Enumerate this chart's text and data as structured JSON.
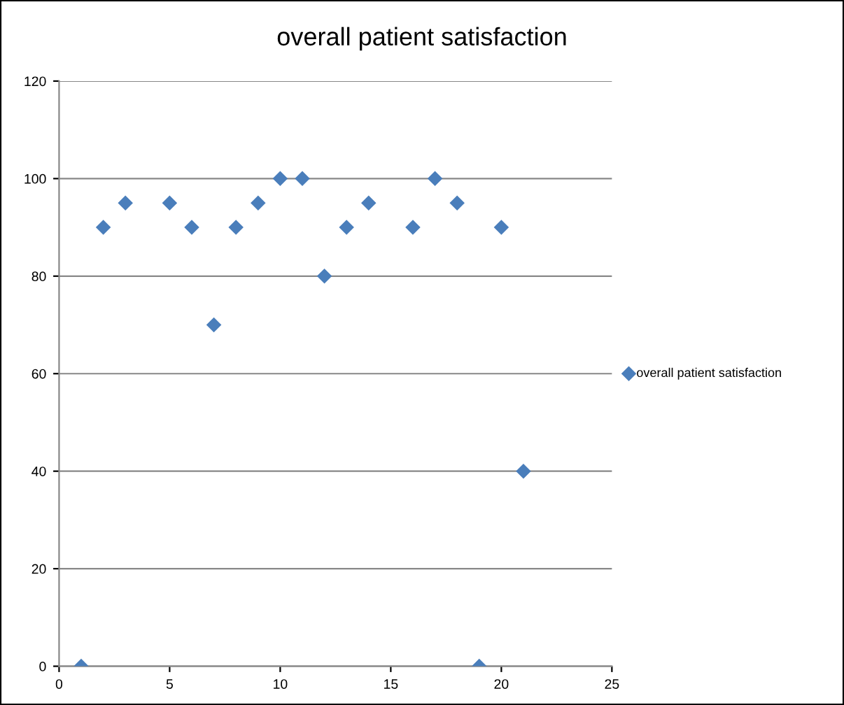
{
  "chart_data": {
    "type": "scatter",
    "title": "overall patient satisfaction",
    "x": [
      1,
      2,
      3,
      5,
      6,
      7,
      8,
      9,
      10,
      11,
      12,
      13,
      14,
      16,
      17,
      18,
      19,
      20,
      21
    ],
    "series": [
      {
        "name": "overall patient satisfaction",
        "color": "#4a7ebb",
        "values": [
          0,
          90,
          95,
          95,
          90,
          70,
          90,
          95,
          100,
          100,
          80,
          90,
          95,
          90,
          100,
          95,
          0,
          90,
          40
        ]
      }
    ],
    "xlim": [
      0,
      25
    ],
    "xticks": [
      0,
      5,
      10,
      15,
      20,
      25
    ],
    "ylim": [
      0,
      120
    ],
    "yticks": [
      0,
      20,
      40,
      60,
      80,
      100,
      120
    ],
    "grid": "y",
    "legend": "right",
    "marker": "diamond"
  }
}
